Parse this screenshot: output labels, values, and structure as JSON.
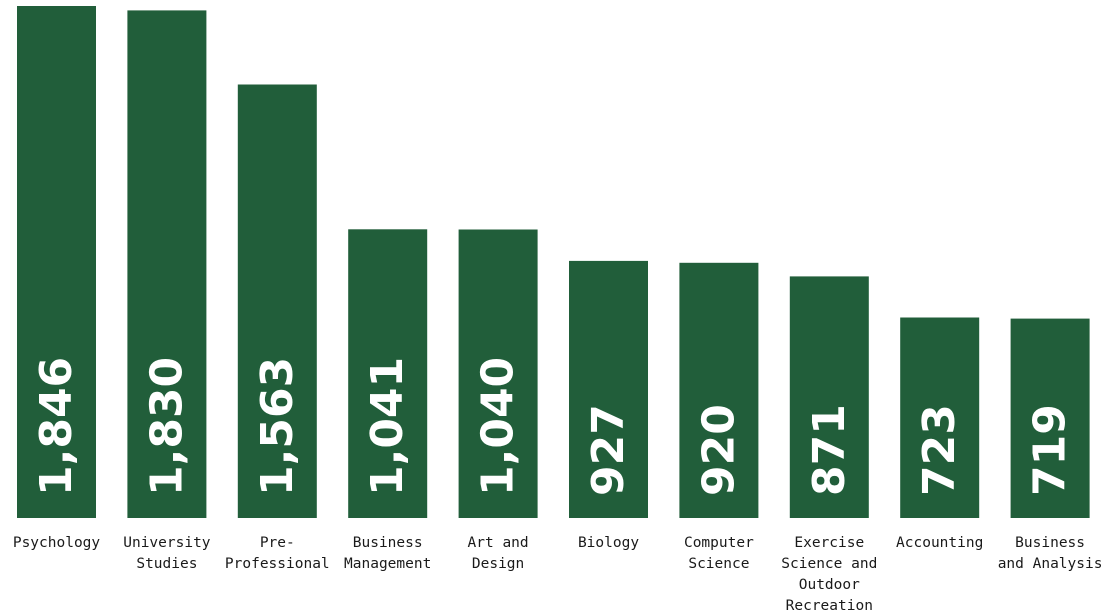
{
  "chart_data": {
    "type": "bar",
    "categories": [
      [
        "Psychology"
      ],
      [
        "University",
        "Studies"
      ],
      [
        "Pre-",
        "Professional"
      ],
      [
        "Business",
        "Management"
      ],
      [
        "Art and",
        "Design"
      ],
      [
        "Biology"
      ],
      [
        "Computer",
        "Science"
      ],
      [
        "Exercise",
        "Science and",
        "Outdoor",
        "Recreation"
      ],
      [
        "Accounting"
      ],
      [
        "Business",
        "and Analysis"
      ]
    ],
    "values": [
      1846,
      1830,
      1563,
      1041,
      1040,
      927,
      920,
      871,
      723,
      719
    ],
    "value_labels": [
      "1,846",
      "1,830",
      "1,563",
      "1,041",
      "1,040",
      "927",
      "920",
      "871",
      "723",
      "719"
    ],
    "bar_color": "#215e3a",
    "value_label_color": "#ffffff",
    "value_label_orientation": "vertical",
    "grid": false,
    "legend": "none"
  }
}
